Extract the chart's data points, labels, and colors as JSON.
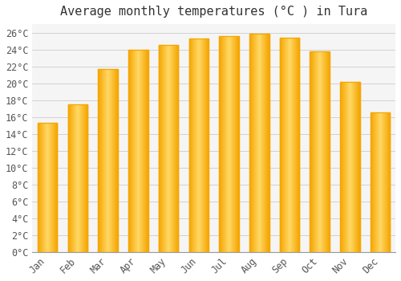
{
  "title": "Average monthly temperatures (°C ) in Tura",
  "months": [
    "Jan",
    "Feb",
    "Mar",
    "Apr",
    "May",
    "Jun",
    "Jul",
    "Aug",
    "Sep",
    "Oct",
    "Nov",
    "Dec"
  ],
  "values": [
    15.3,
    17.5,
    21.7,
    24.0,
    24.5,
    25.3,
    25.6,
    25.9,
    25.4,
    23.8,
    20.2,
    16.5
  ],
  "bar_color_center": "#FFD966",
  "bar_color_edge": "#F5A500",
  "background_color": "#ffffff",
  "plot_bg_color": "#f5f5f5",
  "grid_color": "#cccccc",
  "ylim": [
    0,
    27
  ],
  "ytick_step": 2,
  "title_fontsize": 11,
  "tick_fontsize": 8.5,
  "font_family": "monospace"
}
